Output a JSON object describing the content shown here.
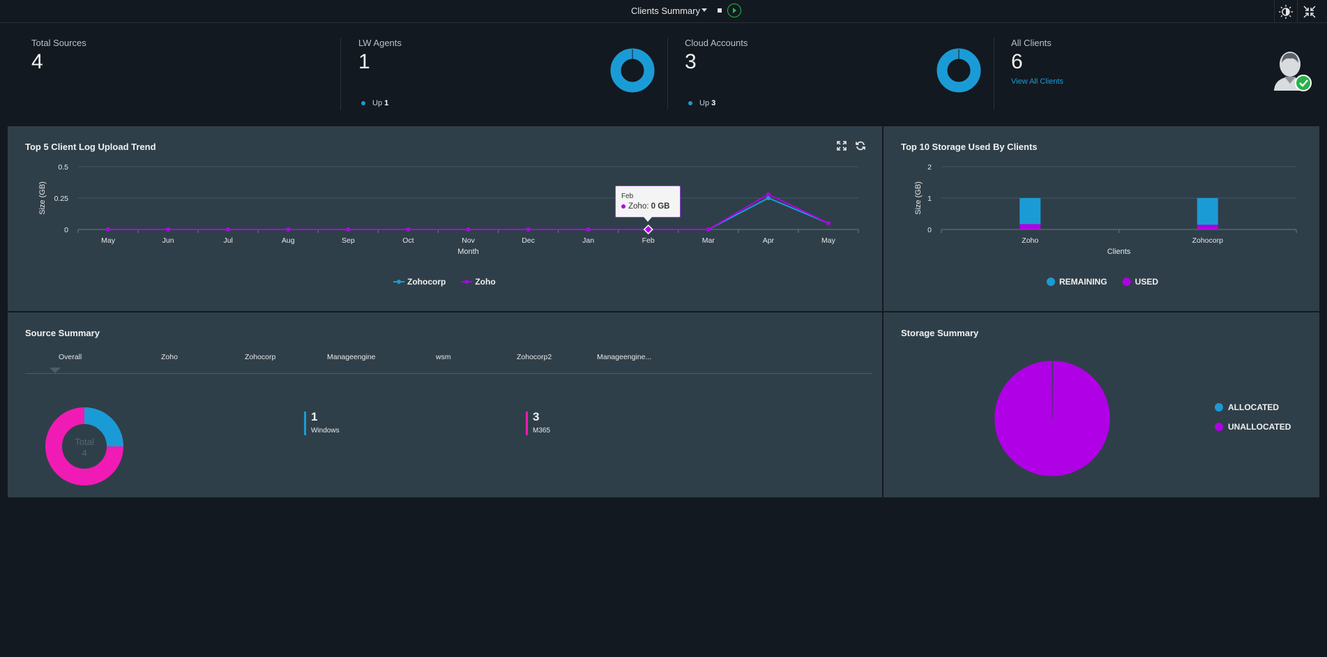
{
  "header": {
    "title": "Clients Summary"
  },
  "icons": {
    "theme": "brightness-icon",
    "collapse": "collapse-icon",
    "expand": "expand-icon",
    "refresh": "refresh-icon"
  },
  "stats": {
    "total_sources": {
      "label": "Total Sources",
      "value": "4"
    },
    "lw_agents": {
      "label": "LW Agents",
      "value": "1",
      "up_label": "Up",
      "up_value": "1"
    },
    "cloud_accounts": {
      "label": "Cloud Accounts",
      "value": "3",
      "up_label": "Up",
      "up_value": "3"
    },
    "all_clients": {
      "label": "All Clients",
      "value": "6",
      "link": "View All Clients"
    }
  },
  "colors": {
    "blue": "#1b9bd6",
    "purple": "#b000e6",
    "magenta": "#f01bb4",
    "panel": "#2f3f49",
    "background": "#131920"
  },
  "upload_trend": {
    "title": "Top 5 Client Log Upload Trend",
    "tooltip": {
      "month": "Feb",
      "series": "Zoho",
      "value_text": "0 GB"
    },
    "chart_data": {
      "type": "line",
      "title": "Top 5 Client Log Upload Trend",
      "xlabel": "Month",
      "ylabel": "Size (GB)",
      "categories": [
        "May",
        "Jun",
        "Jul",
        "Aug",
        "Sep",
        "Oct",
        "Nov",
        "Dec",
        "Jan",
        "Feb",
        "Mar",
        "Apr",
        "May"
      ],
      "ylim": [
        0,
        0.5
      ],
      "yticks": [
        "0.5",
        "0.25",
        "0"
      ],
      "series": [
        {
          "name": "Zohocorp",
          "color": "#1b9bd6",
          "values": [
            0,
            0,
            0,
            0,
            0,
            0,
            0,
            0,
            0,
            0,
            0,
            0.25,
            0.05
          ]
        },
        {
          "name": "Zoho",
          "color": "#b000e6",
          "values": [
            0,
            0,
            0,
            0,
            0,
            0,
            0,
            0,
            0,
            0,
            0,
            0.28,
            0.05
          ]
        }
      ],
      "legend": "bottom-center",
      "grid": true
    }
  },
  "storage_top10": {
    "title": "Top 10 Storage Used By Clients",
    "chart_data": {
      "type": "bar",
      "title": "Top 10 Storage Used By Clients",
      "xlabel": "Clients",
      "ylabel": "Size (GB)",
      "categories": [
        "Zoho",
        "Zohocorp"
      ],
      "ylim": [
        0,
        2
      ],
      "yticks": [
        "2",
        "1",
        "0"
      ],
      "stacked": true,
      "series": [
        {
          "name": "REMAINING",
          "color": "#1b9bd6",
          "values": [
            0.83,
            0.85
          ]
        },
        {
          "name": "USED",
          "color": "#b000e6",
          "values": [
            0.17,
            0.15
          ]
        }
      ],
      "legend": "bottom-center",
      "grid": true
    }
  },
  "source_summary": {
    "title": "Source Summary",
    "tabs": [
      "Overall",
      "Zoho",
      "Zohocorp",
      "Manageengine",
      "wsm",
      "Zohocorp2",
      "Manageengine..."
    ],
    "total_label": "Total",
    "total_value": "4",
    "items": [
      {
        "count": "1",
        "name": "Windows",
        "color": "#1b9bd6"
      },
      {
        "count": "3",
        "name": "M365",
        "color": "#f01bb4"
      }
    ],
    "chart_data": {
      "type": "pie",
      "categories": [
        "Windows",
        "M365"
      ],
      "values": [
        1,
        3
      ],
      "colors": [
        "#1b9bd6",
        "#f01bb4"
      ]
    }
  },
  "storage_summary": {
    "title": "Storage Summary",
    "chart_data": {
      "type": "pie",
      "title": "Storage Summary",
      "categories": [
        "ALLOCATED",
        "UNALLOCATED"
      ],
      "values": [
        0.2,
        99.8
      ],
      "colors": [
        "#1b9bd6",
        "#b000e6"
      ],
      "legend": "right"
    }
  }
}
